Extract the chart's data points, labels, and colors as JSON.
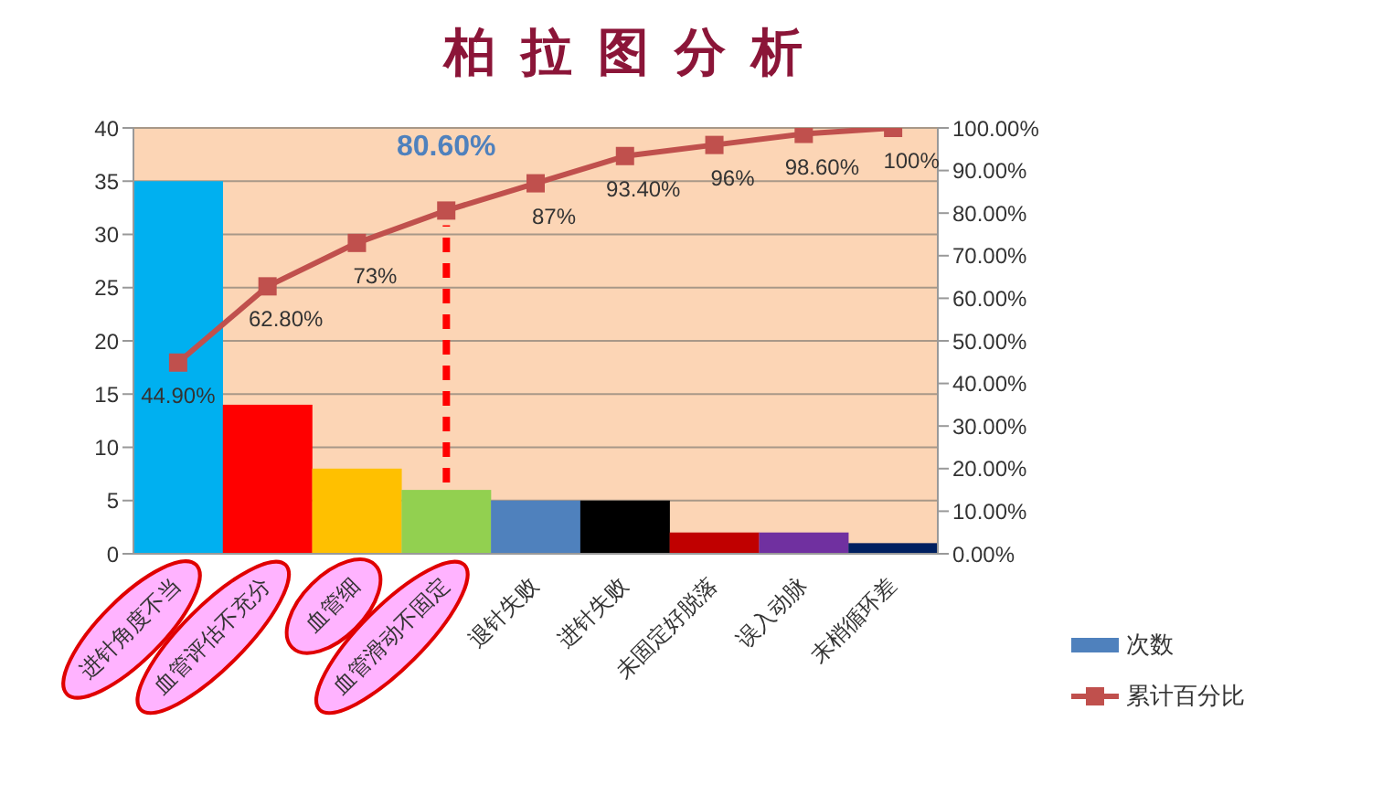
{
  "chart_data": {
    "type": "bar",
    "title": "柏拉图分析",
    "categories": [
      "进针角度不当",
      "血管评估不充分",
      "血管细",
      "血管滑动不固定",
      "退针失败",
      "进针失败",
      "未固定好脱落",
      "误入动脉",
      "末梢循环差"
    ],
    "series": [
      {
        "name": "次数",
        "type": "bar",
        "color": "#4f81bd",
        "colors": [
          "#00b0f0",
          "#ff0000",
          "#ffc000",
          "#92d050",
          "#4f81bd",
          "#000000",
          "#c00000",
          "#7030a0",
          "#002060"
        ],
        "values": [
          35,
          14,
          8,
          6,
          5,
          5,
          2,
          2,
          1
        ]
      },
      {
        "name": "累计百分比",
        "type": "line",
        "axis": "y2",
        "color": "#c0504d",
        "marker": "square",
        "values": [
          44.9,
          62.8,
          73,
          80.6,
          87,
          93.4,
          96,
          98.6,
          100
        ],
        "value_labels": [
          "44.90%",
          "62.80%",
          "73%",
          null,
          "87%",
          "93.40%",
          "96%",
          "98.60%",
          "100%"
        ]
      }
    ],
    "ylim": [
      0,
      40
    ],
    "yticks": [
      0,
      5,
      10,
      15,
      20,
      25,
      30,
      35,
      40
    ],
    "y2lim": [
      0,
      100
    ],
    "y2ticks": [
      {
        "value": 0,
        "label": "0.00%"
      },
      {
        "value": 10,
        "label": "10.00%"
      },
      {
        "value": 20,
        "label": "20.00%"
      },
      {
        "value": 30,
        "label": "30.00%"
      },
      {
        "value": 40,
        "label": "40.00%"
      },
      {
        "value": 50,
        "label": "50.00%"
      },
      {
        "value": 60,
        "label": "60.00%"
      },
      {
        "value": 70,
        "label": "70.00%"
      },
      {
        "value": 80,
        "label": "80.00%"
      },
      {
        "value": 90,
        "label": "90.00%"
      },
      {
        "value": 100,
        "label": "100.00%"
      }
    ],
    "annotations": [
      "80.60%"
    ],
    "ref_lines": [
      {
        "axis": "x",
        "value": "血管滑动不固定",
        "label": null,
        "color": "#ff0000",
        "line_style": "dashed"
      }
    ],
    "grid": "y",
    "legend": "right"
  }
}
